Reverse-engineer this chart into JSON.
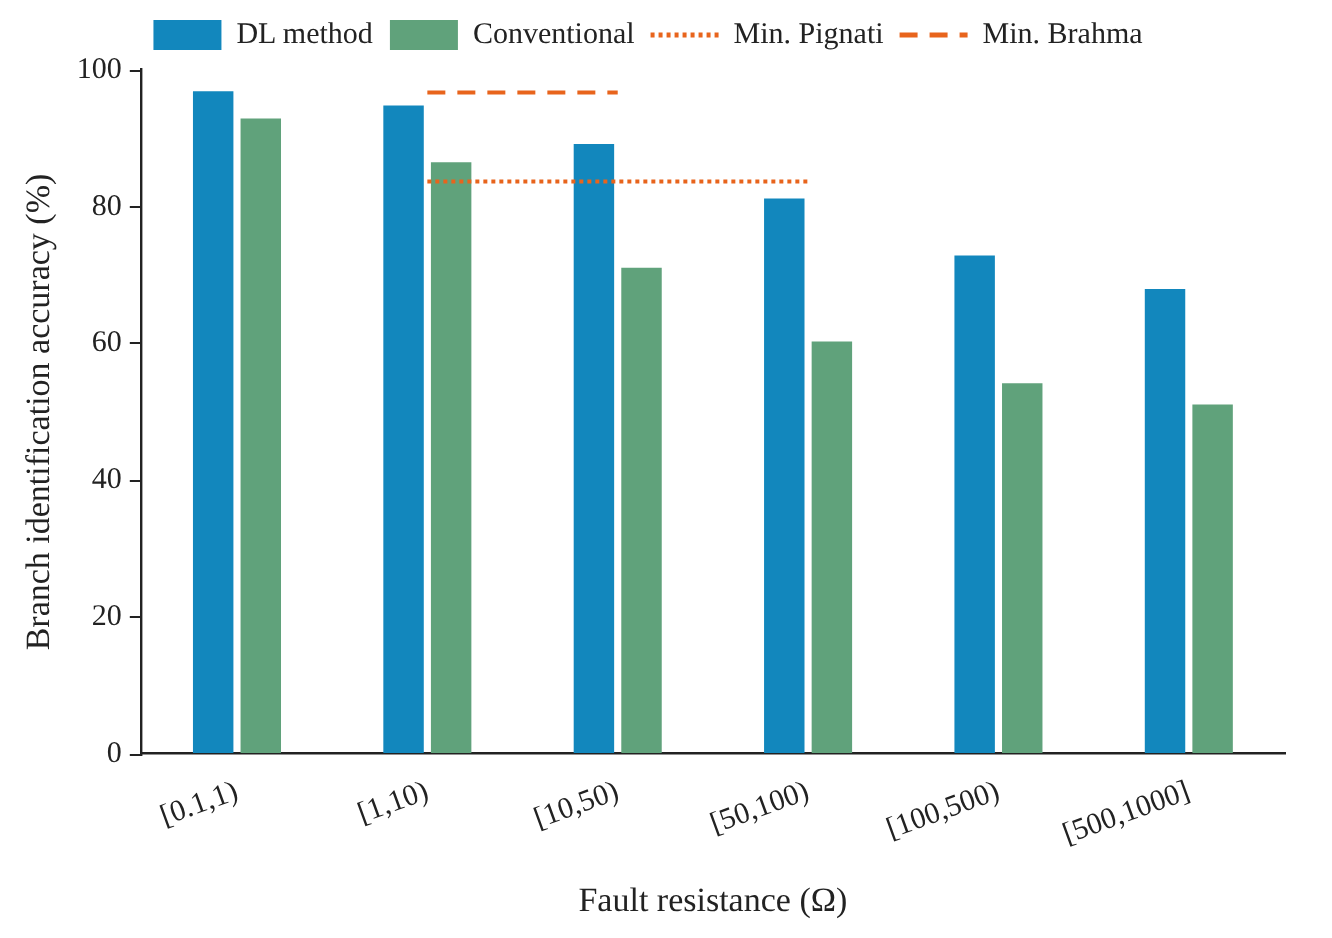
{
  "chart_data": {
    "type": "bar",
    "xlabel": "Fault resistance (Ω)",
    "ylabel": "Branch identification accuracy (%)",
    "categories": [
      "[0.1,1)",
      "[1,10)",
      "[10,50)",
      "[50,100)",
      "[100,500)",
      "[500,1000]"
    ],
    "ylim": [
      0,
      100
    ],
    "yticks": [
      0,
      20,
      40,
      60,
      80,
      100
    ],
    "grid": false,
    "legend": "top",
    "marker": "none",
    "series": [
      {
        "name": "DL method",
        "color": "#1287bd",
        "values": [
          96.9,
          94.8,
          89.2,
          81.2,
          72.9,
          68.0
        ]
      },
      {
        "name": "Conventional",
        "color": "#60a27b",
        "values": [
          92.9,
          86.5,
          71.1,
          60.3,
          54.2,
          51.1
        ]
      },
      {
        "name": "Min. Pignati",
        "type": "line",
        "line_style": "dotted",
        "color": "#e8641c",
        "values": [
          null,
          83.7,
          83.7,
          83.7,
          null,
          null
        ]
      },
      {
        "name": "Min. Brahma",
        "type": "line",
        "line_style": "dashed",
        "color": "#e8641c",
        "values": [
          null,
          96.7,
          96.7,
          null,
          null,
          null
        ]
      }
    ]
  }
}
